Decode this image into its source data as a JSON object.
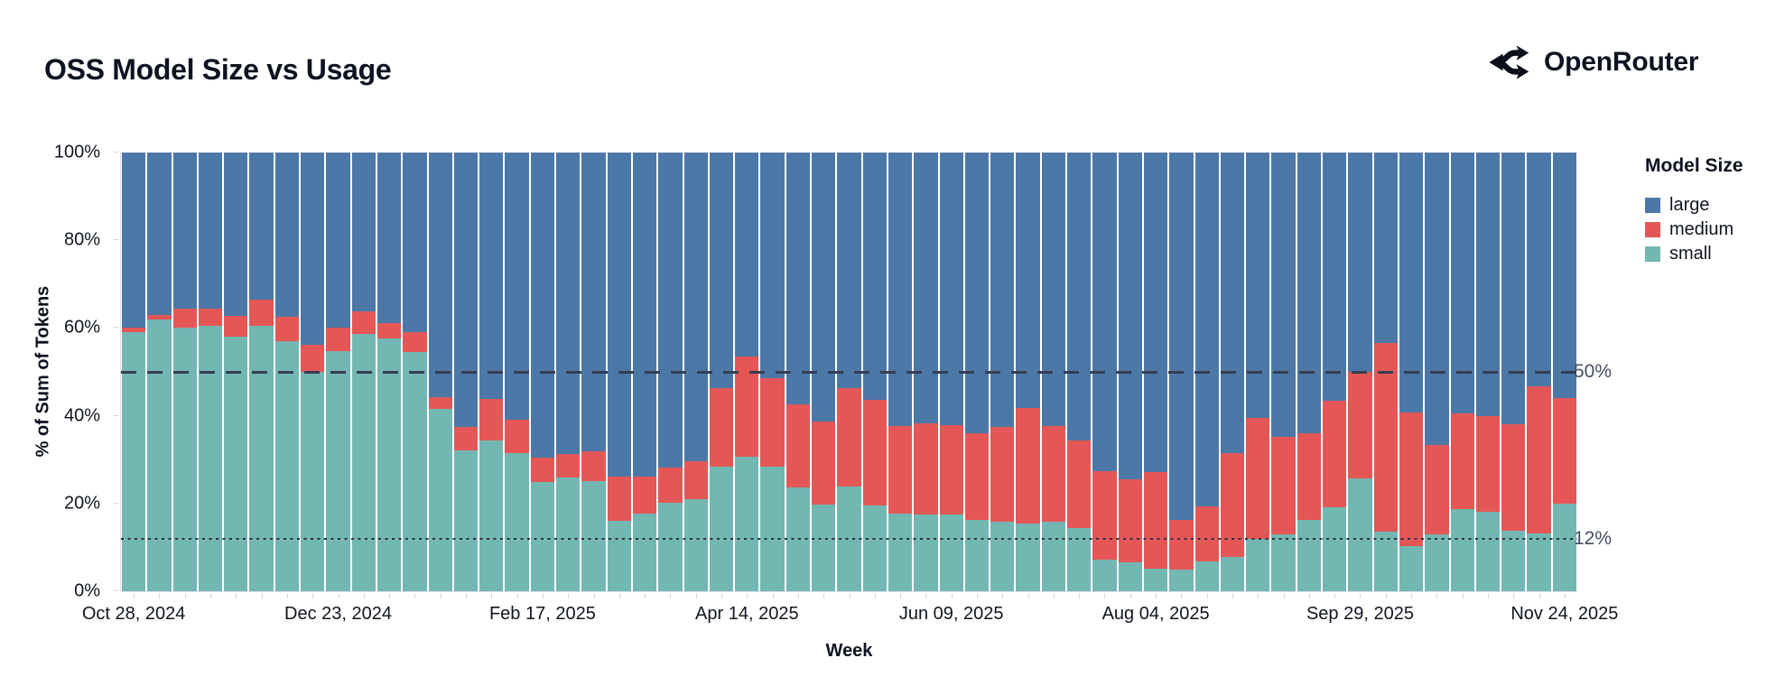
{
  "header": {
    "title": "OSS Model Size vs Usage",
    "brand_name": "OpenRouter"
  },
  "chart_data": {
    "type": "bar",
    "stacked": true,
    "title": "OSS Model Size vs Usage",
    "xlabel": "Week",
    "ylabel": "% of Sum of Tokens",
    "ylim": [
      0,
      100
    ],
    "grid": true,
    "y_ticks": [
      {
        "value": 0,
        "label": "0%"
      },
      {
        "value": 20,
        "label": "20%"
      },
      {
        "value": 40,
        "label": "40%"
      },
      {
        "value": 60,
        "label": "60%"
      },
      {
        "value": 80,
        "label": "80%"
      },
      {
        "value": 100,
        "label": "100%"
      }
    ],
    "x_ticks": [
      {
        "index": 0,
        "label": "Oct 28, 2024"
      },
      {
        "index": 8,
        "label": "Dec 23, 2024"
      },
      {
        "index": 16,
        "label": "Feb 17, 2025"
      },
      {
        "index": 24,
        "label": "Apr 14, 2025"
      },
      {
        "index": 32,
        "label": "Jun 09, 2025"
      },
      {
        "index": 40,
        "label": "Aug 04, 2025"
      },
      {
        "index": 48,
        "label": "Sep 29, 2025"
      },
      {
        "index": 56,
        "label": "Nov 24, 2025"
      }
    ],
    "reference_lines": [
      {
        "value": 50,
        "style": "dashed",
        "label": "50%"
      },
      {
        "value": 12,
        "style": "dotted",
        "label": "12%"
      }
    ],
    "legend": {
      "title": "Model Size",
      "position": "right",
      "entries": [
        {
          "label": "large",
          "color": "#4c78a8"
        },
        {
          "label": "medium",
          "color": "#e45756"
        },
        {
          "label": "small",
          "color": "#72b7b2"
        }
      ]
    },
    "categories": [
      "Oct 28, 2024",
      "Nov 04, 2024",
      "Nov 11, 2024",
      "Nov 18, 2024",
      "Nov 25, 2024",
      "Dec 02, 2024",
      "Dec 09, 2024",
      "Dec 16, 2024",
      "Dec 23, 2024",
      "Dec 30, 2024",
      "Jan 06, 2025",
      "Jan 13, 2025",
      "Jan 20, 2025",
      "Jan 27, 2025",
      "Feb 03, 2025",
      "Feb 10, 2025",
      "Feb 17, 2025",
      "Feb 24, 2025",
      "Mar 03, 2025",
      "Mar 10, 2025",
      "Mar 17, 2025",
      "Mar 24, 2025",
      "Mar 31, 2025",
      "Apr 07, 2025",
      "Apr 14, 2025",
      "Apr 21, 2025",
      "Apr 28, 2025",
      "May 05, 2025",
      "May 12, 2025",
      "May 19, 2025",
      "May 26, 2025",
      "Jun 02, 2025",
      "Jun 09, 2025",
      "Jun 16, 2025",
      "Jun 23, 2025",
      "Jun 30, 2025",
      "Jul 07, 2025",
      "Jul 14, 2025",
      "Jul 21, 2025",
      "Jul 28, 2025",
      "Aug 04, 2025",
      "Aug 11, 2025",
      "Aug 18, 2025",
      "Aug 25, 2025",
      "Sep 01, 2025",
      "Sep 08, 2025",
      "Sep 15, 2025",
      "Sep 22, 2025",
      "Sep 29, 2025",
      "Oct 06, 2025",
      "Oct 13, 2025",
      "Oct 20, 2025",
      "Oct 27, 2025",
      "Nov 03, 2025",
      "Nov 10, 2025",
      "Nov 17, 2025",
      "Nov 24, 2025"
    ],
    "series": [
      {
        "name": "small",
        "color": "#72b7b2",
        "values": [
          59.0,
          62.0,
          60.0,
          60.5,
          58.0,
          60.5,
          57.0,
          50.0,
          54.7,
          58.6,
          57.6,
          54.5,
          41.6,
          32.1,
          34.3,
          31.4,
          25.0,
          25.9,
          25.2,
          16.0,
          17.8,
          20.2,
          21.0,
          28.5,
          30.7,
          28.3,
          23.6,
          19.8,
          23.8,
          19.6,
          17.8,
          17.5,
          17.5,
          16.3,
          15.9,
          15.4,
          15.9,
          14.4,
          7.3,
          6.6,
          5.2,
          4.9,
          6.8,
          7.8,
          12.0,
          12.9,
          16.3,
          19.2,
          25.7,
          13.6,
          10.2,
          12.9,
          18.7,
          18.2,
          13.7,
          13.2,
          20.0
        ]
      },
      {
        "name": "medium",
        "color": "#e45756",
        "values": [
          1.0,
          1.0,
          4.5,
          4.0,
          4.8,
          6.0,
          5.6,
          6.2,
          5.3,
          5.2,
          3.6,
          4.5,
          2.7,
          5.4,
          9.6,
          7.6,
          5.4,
          5.3,
          6.6,
          10.1,
          8.3,
          7.9,
          8.6,
          17.9,
          22.8,
          20.2,
          18.9,
          18.8,
          22.4,
          24.0,
          19.9,
          20.7,
          20.4,
          19.8,
          21.5,
          26.3,
          21.7,
          19.9,
          20.0,
          19.0,
          22.0,
          11.4,
          12.6,
          23.7,
          27.5,
          22.2,
          19.7,
          24.2,
          24.4,
          43.0,
          30.5,
          20.4,
          21.9,
          21.7,
          24.4,
          33.6,
          24.1
        ]
      },
      {
        "name": "large",
        "color": "#4c78a8",
        "values": [
          40.0,
          37.0,
          35.5,
          35.5,
          37.2,
          33.5,
          37.4,
          43.8,
          40.0,
          36.2,
          38.8,
          41.0,
          55.7,
          62.5,
          56.1,
          61.0,
          69.6,
          68.8,
          68.2,
          73.9,
          73.9,
          71.9,
          70.4,
          53.6,
          46.5,
          51.5,
          57.5,
          61.4,
          53.8,
          56.4,
          62.3,
          61.8,
          62.1,
          63.9,
          62.6,
          58.3,
          62.4,
          65.7,
          72.7,
          74.4,
          72.8,
          83.7,
          80.6,
          68.5,
          60.5,
          64.9,
          64.0,
          56.6,
          49.9,
          43.4,
          59.3,
          66.7,
          59.4,
          60.1,
          61.9,
          53.2,
          55.9
        ]
      }
    ]
  }
}
